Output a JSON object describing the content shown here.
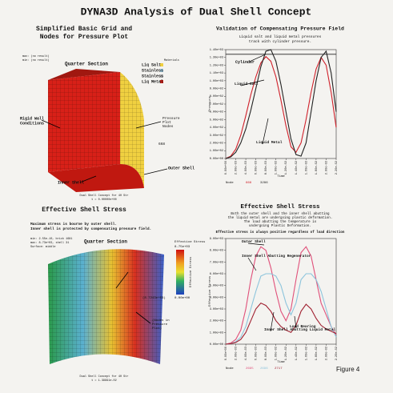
{
  "title": "DYNA3D Analysis of Dual Shell Concept",
  "figure_label": "Figure 4",
  "grid_panel": {
    "title": [
      "Simplified Basic Grid and",
      "Nodes for Pressure Plot"
    ],
    "section": "Quarter Section",
    "min": "min: (no result)",
    "max": "max: (no result)",
    "materials_title": "Materials",
    "materials": [
      "Liq Salt",
      "Stainless",
      "Stainless",
      "Liq Metal"
    ],
    "rigid_wall": [
      "Rigid Wall",
      "Conditions"
    ],
    "nodes_label": [
      "Pressure",
      "Plot",
      "Nodes"
    ],
    "node_id": "668",
    "outer_shell": "Outer Shell",
    "inner_shell": "Inner Shell",
    "caption": "Dual Shell Concept for 40 Str",
    "time": "t = 0.00000e+00"
  },
  "stress_panel": {
    "title": "Effective Shell Stress",
    "note": [
      "Maximum stress is bourne by outer shell.",
      "Inner shell is protected by compensating pressure field."
    ],
    "section": "Quarter Section",
    "min": "min: 2.55e-10, brick 1681",
    "max": "max: 8.73e+03, shell 31",
    "surface": "Surface: middle",
    "colorbar_title": "Effective Stress",
    "colorbar_max": "8.75e+03",
    "colorbar_min": "0.00e+00",
    "colorbar_axis": "Effective Stress",
    "peak": "(8.7243e+03)",
    "nodes_label": [
      "(Nodes in",
      "Pressure",
      "Plot)"
    ],
    "caption": "Dual Shell Concept for 40 Str",
    "time": "t = 1.39991e-02"
  },
  "chart_data": [
    {
      "type": "line",
      "title": "Validation of Compensating Pressure Field",
      "subtitle": [
        "Liquid salt and liquid metal pressures",
        "track with cylinder pressure."
      ],
      "y_label": "Pressure",
      "x_label": "Time",
      "legend_title": "Node",
      "x": [
        0,
        0.001,
        0.002,
        0.003,
        0.004,
        0.005,
        0.006,
        0.007,
        0.008,
        0.009,
        0.01,
        0.011,
        0.012,
        0.013,
        0.014,
        0.015,
        0.016,
        0.017,
        0.018,
        0.019,
        0.02,
        0.021,
        0.022
      ],
      "series": [
        {
          "name": "668",
          "color": "#d0202a",
          "values": [
            0,
            30,
            120,
            300,
            550,
            820,
            1050,
            1230,
            1310,
            1250,
            1050,
            750,
            420,
            150,
            80,
            200,
            500,
            850,
            1150,
            1300,
            1200,
            850,
            400
          ]
        },
        {
          "name": "3286",
          "color": "#222222",
          "values": [
            0,
            20,
            80,
            200,
            380,
            620,
            900,
            1180,
            1380,
            1400,
            1250,
            950,
            600,
            250,
            50,
            30,
            200,
            600,
            1000,
            1300,
            1380,
            1100,
            600
          ]
        }
      ],
      "reference_line": {
        "label": "Cylinder",
        "value": 1340,
        "color": "#222222"
      },
      "annotations": [
        "Liquid Salt",
        "Liquid Metal"
      ],
      "xlim": [
        0,
        0.022
      ],
      "ylim": [
        0,
        1400
      ],
      "xticks": [
        {
          "value": 0,
          "label": "0.00e+00"
        },
        {
          "value": 0.002,
          "label": "2.00e-03"
        },
        {
          "value": 0.004,
          "label": "4.00e-03"
        },
        {
          "value": 0.006,
          "label": "6.00e-03"
        },
        {
          "value": 0.008,
          "label": "8.00e-03"
        },
        {
          "value": 0.01,
          "label": "1.00e-02"
        },
        {
          "value": 0.012,
          "label": "1.20e-02"
        },
        {
          "value": 0.014,
          "label": "1.40e-02"
        },
        {
          "value": 0.016,
          "label": "1.60e-02"
        },
        {
          "value": 0.018,
          "label": "1.80e-02"
        },
        {
          "value": 0.02,
          "label": "2.00e-02"
        },
        {
          "value": 0.022,
          "label": "2.20e-02"
        }
      ],
      "yticks": [
        {
          "value": 0,
          "label": "0.00e+00"
        },
        {
          "value": 100,
          "label": "1.00e+02"
        },
        {
          "value": 200,
          "label": "2.00e+02"
        },
        {
          "value": 300,
          "label": "3.00e+02"
        },
        {
          "value": 400,
          "label": "4.00e+02"
        },
        {
          "value": 500,
          "label": "5.00e+02"
        },
        {
          "value": 600,
          "label": "6.00e+02"
        },
        {
          "value": 700,
          "label": "7.00e+02"
        },
        {
          "value": 800,
          "label": "8.00e+02"
        },
        {
          "value": 900,
          "label": "9.00e+02"
        },
        {
          "value": 1000,
          "label": "1.00e+03"
        },
        {
          "value": 1100,
          "label": "1.10e+03"
        },
        {
          "value": 1200,
          "label": "1.20e+03"
        },
        {
          "value": 1300,
          "label": "1.30e+03"
        },
        {
          "value": 1400,
          "label": "1.40e+03"
        }
      ],
      "grid": false
    },
    {
      "type": "line",
      "title": "Effective Shell Stress",
      "subtitle": [
        "Both the outer shell and the inner shell abutting",
        "the liquid metal are undergoing plastic deformation.",
        "The load abutting the temperature is",
        "undergoing Plastic Deformation."
      ],
      "note": "Effective stress is always positive regardless of load direction",
      "y_label": "Effective Stress",
      "x_label": "Time",
      "legend_title": "Node",
      "x": [
        0,
        0.001,
        0.002,
        0.003,
        0.004,
        0.005,
        0.006,
        0.007,
        0.008,
        0.009,
        0.01,
        0.011,
        0.012,
        0.013,
        0.014,
        0.015,
        0.016,
        0.017,
        0.018,
        0.019,
        0.02,
        0.021,
        0.022
      ],
      "series": [
        {
          "name": "2695",
          "color": "#e0507a",
          "values": [
            0,
            100,
            400,
            1200,
            3000,
            5500,
            7500,
            8300,
            8000,
            6500,
            4500,
            2800,
            2000,
            3000,
            5500,
            7800,
            8300,
            7500,
            5500,
            3500,
            2500,
            1500,
            800
          ]
        },
        {
          "name": "2696",
          "color": "#8cc4dc",
          "values": [
            0,
            50,
            200,
            600,
            1500,
            3000,
            4500,
            5800,
            6000,
            6000,
            5800,
            5000,
            3500,
            2500,
            3500,
            5500,
            6000,
            6000,
            5500,
            4500,
            3000,
            1500,
            600
          ]
        },
        {
          "name": "2717",
          "color": "#a02030",
          "values": [
            0,
            50,
            150,
            400,
            1000,
            2000,
            3000,
            3500,
            3300,
            2800,
            2000,
            1500,
            1200,
            1000,
            1600,
            2800,
            3400,
            3000,
            2200,
            1600,
            1300,
            1100,
            900
          ]
        }
      ],
      "annotations": [
        "Outer Shell",
        "Inner Shell Abutting Regenerator",
        "Inner Shell Abutting Liquid Metal",
        "Load Bearing"
      ],
      "xlim": [
        0,
        0.022
      ],
      "ylim": [
        0,
        9000
      ],
      "xticks": [
        {
          "value": 0,
          "label": "0.00e+00"
        },
        {
          "value": 0.002,
          "label": "2.00e-03"
        },
        {
          "value": 0.004,
          "label": "4.00e-03"
        },
        {
          "value": 0.006,
          "label": "6.00e-03"
        },
        {
          "value": 0.008,
          "label": "8.00e-03"
        },
        {
          "value": 0.01,
          "label": "1.00e-02"
        },
        {
          "value": 0.012,
          "label": "1.20e-02"
        },
        {
          "value": 0.014,
          "label": "1.40e-02"
        },
        {
          "value": 0.016,
          "label": "1.60e-02"
        },
        {
          "value": 0.018,
          "label": "1.80e-02"
        },
        {
          "value": 0.02,
          "label": "2.00e-02"
        },
        {
          "value": 0.022,
          "label": "2.20e-02"
        }
      ],
      "yticks": [
        {
          "value": 0,
          "label": "0.00e+00"
        },
        {
          "value": 1000,
          "label": "1.00e+03"
        },
        {
          "value": 2000,
          "label": "2.00e+03"
        },
        {
          "value": 3000,
          "label": "3.00e+03"
        },
        {
          "value": 4000,
          "label": "4.00e+03"
        },
        {
          "value": 5000,
          "label": "5.00e+03"
        },
        {
          "value": 6000,
          "label": "6.00e+03"
        },
        {
          "value": 7000,
          "label": "7.00e+03"
        },
        {
          "value": 8000,
          "label": "8.00e+03"
        },
        {
          "value": 9000,
          "label": "9.00e+03"
        }
      ],
      "grid": false
    }
  ]
}
